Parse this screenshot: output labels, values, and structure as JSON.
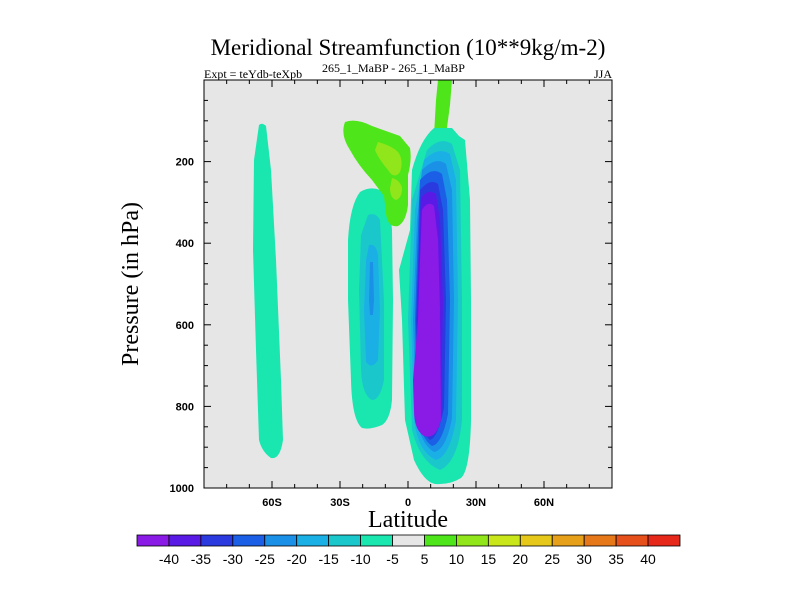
{
  "chart_data": {
    "type": "contour",
    "title": "Meridional Streamfunction (10**9kg/m-2)",
    "left_label": "Expt = teYdb-teXpb",
    "experiment_label": "265_1_MaBP - 265_1_MaBP",
    "season": "JJA",
    "xlabel": "Latitude",
    "ylabel": "Pressure (in hPa)",
    "xlim": [
      -90,
      90
    ],
    "ylim": [
      1000,
      0
    ],
    "x_ticks": [
      {
        "value": -60,
        "label": "60S"
      },
      {
        "value": -30,
        "label": "30S"
      },
      {
        "value": 0,
        "label": "0"
      },
      {
        "value": 30,
        "label": "30N"
      },
      {
        "value": 60,
        "label": "60N"
      }
    ],
    "y_ticks": [
      {
        "value": 200,
        "label": "200"
      },
      {
        "value": 400,
        "label": "400"
      },
      {
        "value": 600,
        "label": "600"
      },
      {
        "value": 800,
        "label": "800"
      },
      {
        "value": 1000,
        "label": "1000"
      }
    ],
    "colorbar": {
      "labels": [
        "-40",
        "-35",
        "-30",
        "-25",
        "-20",
        "-15",
        "-10",
        "-5",
        "5",
        "10",
        "15",
        "20",
        "25",
        "30",
        "35",
        "40"
      ],
      "colors": [
        "#8a1ae6",
        "#5a1ae6",
        "#2a3adf",
        "#1a5fe6",
        "#1a90e6",
        "#1ab0e6",
        "#1ac8cc",
        "#1ae6b0",
        "#e6e6e6",
        "#4ee61a",
        "#90e61a",
        "#c8e61a",
        "#e6c81a",
        "#e6a01a",
        "#e6781a",
        "#e6501a",
        "#e6281a"
      ]
    },
    "background_color": "#e6e6e6"
  }
}
